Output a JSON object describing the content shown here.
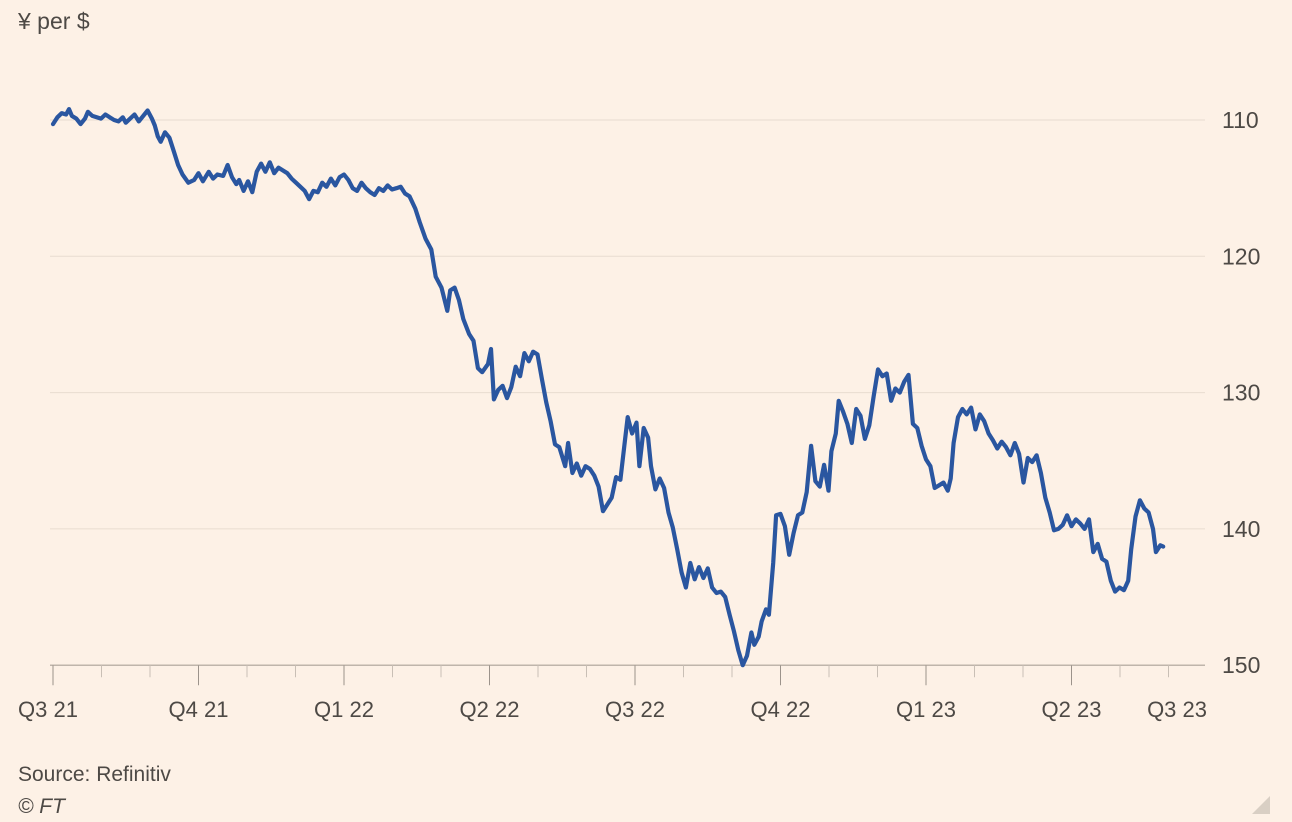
{
  "header": {
    "unit_label": "¥ per $"
  },
  "footer": {
    "source": "Source: Refinitiv",
    "copyright": "© FT"
  },
  "colors": {
    "background": "#fdf1e6",
    "line": "#2a56a0",
    "grid": "#e8dcd0",
    "text": "#4d4945"
  },
  "chart_data": {
    "type": "line",
    "title": "",
    "xlabel": "",
    "ylabel": "¥ per $",
    "y_axis_position": "right",
    "y_inverted": true,
    "ylim": [
      150,
      106
    ],
    "y_ticks": [
      110,
      120,
      130,
      140,
      150
    ],
    "x_tick_labels": [
      "Q3 21",
      "Q4 21",
      "Q1 22",
      "Q2 22",
      "Q3 22",
      "Q4 22",
      "Q1 23",
      "Q2 23",
      "Q3 23"
    ],
    "x_range_quarters": [
      0,
      8.3
    ],
    "grid": true,
    "legend": "none",
    "series": [
      {
        "values": [
          [
            0.0,
            110.3
          ],
          [
            0.03,
            109.8
          ],
          [
            0.06,
            109.5
          ],
          [
            0.09,
            109.6
          ],
          [
            0.11,
            109.2
          ],
          [
            0.13,
            109.7
          ],
          [
            0.16,
            109.9
          ],
          [
            0.19,
            110.3
          ],
          [
            0.22,
            109.9
          ],
          [
            0.24,
            109.4
          ],
          [
            0.27,
            109.7
          ],
          [
            0.3,
            109.8
          ],
          [
            0.33,
            109.9
          ],
          [
            0.36,
            109.6
          ],
          [
            0.39,
            109.8
          ],
          [
            0.42,
            110.0
          ],
          [
            0.45,
            110.1
          ],
          [
            0.48,
            109.8
          ],
          [
            0.5,
            110.2
          ],
          [
            0.53,
            109.9
          ],
          [
            0.56,
            109.6
          ],
          [
            0.59,
            110.1
          ],
          [
            0.62,
            109.7
          ],
          [
            0.65,
            109.3
          ],
          [
            0.68,
            109.9
          ],
          [
            0.7,
            110.4
          ],
          [
            0.72,
            111.2
          ],
          [
            0.74,
            111.6
          ],
          [
            0.77,
            110.9
          ],
          [
            0.8,
            111.3
          ],
          [
            0.83,
            112.3
          ],
          [
            0.86,
            113.3
          ],
          [
            0.89,
            114.0
          ],
          [
            0.93,
            114.6
          ],
          [
            0.97,
            114.4
          ],
          [
            1.0,
            113.9
          ],
          [
            1.03,
            114.5
          ],
          [
            1.07,
            113.8
          ],
          [
            1.1,
            114.3
          ],
          [
            1.13,
            114.0
          ],
          [
            1.17,
            114.1
          ],
          [
            1.2,
            113.3
          ],
          [
            1.23,
            114.2
          ],
          [
            1.26,
            114.7
          ],
          [
            1.28,
            114.4
          ],
          [
            1.31,
            115.2
          ],
          [
            1.34,
            114.5
          ],
          [
            1.37,
            115.3
          ],
          [
            1.4,
            113.8
          ],
          [
            1.43,
            113.2
          ],
          [
            1.46,
            113.8
          ],
          [
            1.49,
            113.1
          ],
          [
            1.52,
            113.9
          ],
          [
            1.55,
            113.5
          ],
          [
            1.58,
            113.7
          ],
          [
            1.61,
            113.9
          ],
          [
            1.64,
            114.3
          ],
          [
            1.67,
            114.6
          ],
          [
            1.7,
            114.9
          ],
          [
            1.73,
            115.2
          ],
          [
            1.76,
            115.8
          ],
          [
            1.79,
            115.2
          ],
          [
            1.82,
            115.3
          ],
          [
            1.85,
            114.6
          ],
          [
            1.88,
            114.9
          ],
          [
            1.91,
            114.3
          ],
          [
            1.94,
            114.8
          ],
          [
            1.97,
            114.2
          ],
          [
            2.0,
            114.0
          ],
          [
            2.03,
            114.4
          ],
          [
            2.06,
            115.0
          ],
          [
            2.09,
            115.2
          ],
          [
            2.12,
            114.6
          ],
          [
            2.15,
            115.0
          ],
          [
            2.18,
            115.3
          ],
          [
            2.21,
            115.5
          ],
          [
            2.24,
            115.0
          ],
          [
            2.27,
            115.2
          ],
          [
            2.3,
            114.8
          ],
          [
            2.33,
            115.1
          ],
          [
            2.36,
            115.0
          ],
          [
            2.39,
            114.9
          ],
          [
            2.42,
            115.4
          ],
          [
            2.45,
            115.6
          ],
          [
            2.49,
            116.5
          ],
          [
            2.52,
            117.5
          ],
          [
            2.56,
            118.7
          ],
          [
            2.6,
            119.5
          ],
          [
            2.63,
            121.5
          ],
          [
            2.67,
            122.3
          ],
          [
            2.71,
            124.0
          ],
          [
            2.73,
            122.5
          ],
          [
            2.76,
            122.3
          ],
          [
            2.79,
            123.2
          ],
          [
            2.82,
            124.6
          ],
          [
            2.86,
            125.7
          ],
          [
            2.89,
            126.2
          ],
          [
            2.92,
            128.2
          ],
          [
            2.95,
            128.5
          ],
          [
            2.99,
            127.9
          ],
          [
            3.01,
            126.8
          ],
          [
            3.03,
            130.5
          ],
          [
            3.06,
            129.8
          ],
          [
            3.09,
            129.5
          ],
          [
            3.12,
            130.4
          ],
          [
            3.15,
            129.6
          ],
          [
            3.18,
            128.1
          ],
          [
            3.21,
            128.8
          ],
          [
            3.24,
            127.1
          ],
          [
            3.27,
            127.7
          ],
          [
            3.3,
            127.0
          ],
          [
            3.33,
            127.2
          ],
          [
            3.36,
            129.0
          ],
          [
            3.39,
            130.7
          ],
          [
            3.42,
            132.1
          ],
          [
            3.45,
            133.8
          ],
          [
            3.48,
            134.0
          ],
          [
            3.52,
            135.4
          ],
          [
            3.54,
            133.7
          ],
          [
            3.57,
            135.9
          ],
          [
            3.6,
            135.2
          ],
          [
            3.63,
            136.1
          ],
          [
            3.66,
            135.4
          ],
          [
            3.69,
            135.6
          ],
          [
            3.72,
            136.1
          ],
          [
            3.75,
            136.9
          ],
          [
            3.78,
            138.7
          ],
          [
            3.81,
            138.2
          ],
          [
            3.84,
            137.7
          ],
          [
            3.87,
            136.2
          ],
          [
            3.9,
            136.4
          ],
          [
            3.93,
            133.6
          ],
          [
            3.95,
            131.8
          ],
          [
            3.98,
            133.0
          ],
          [
            4.01,
            132.2
          ],
          [
            4.03,
            135.4
          ],
          [
            4.06,
            132.6
          ],
          [
            4.09,
            133.3
          ],
          [
            4.11,
            135.4
          ],
          [
            4.14,
            137.1
          ],
          [
            4.17,
            136.3
          ],
          [
            4.2,
            137.0
          ],
          [
            4.23,
            138.8
          ],
          [
            4.26,
            139.9
          ],
          [
            4.29,
            141.5
          ],
          [
            4.32,
            143.2
          ],
          [
            4.35,
            144.3
          ],
          [
            4.38,
            142.5
          ],
          [
            4.41,
            143.7
          ],
          [
            4.44,
            142.8
          ],
          [
            4.47,
            143.6
          ],
          [
            4.5,
            142.9
          ],
          [
            4.53,
            144.3
          ],
          [
            4.56,
            144.7
          ],
          [
            4.59,
            144.6
          ],
          [
            4.62,
            145.0
          ],
          [
            4.65,
            146.3
          ],
          [
            4.68,
            147.5
          ],
          [
            4.71,
            148.9
          ],
          [
            4.74,
            150.0
          ],
          [
            4.77,
            149.3
          ],
          [
            4.8,
            147.6
          ],
          [
            4.82,
            148.5
          ],
          [
            4.85,
            147.9
          ],
          [
            4.87,
            146.8
          ],
          [
            4.9,
            145.9
          ],
          [
            4.92,
            146.3
          ],
          [
            4.95,
            142.5
          ],
          [
            4.97,
            139.0
          ],
          [
            5.0,
            138.9
          ],
          [
            5.03,
            139.8
          ],
          [
            5.06,
            141.9
          ],
          [
            5.09,
            140.3
          ],
          [
            5.12,
            139.0
          ],
          [
            5.15,
            138.8
          ],
          [
            5.18,
            137.3
          ],
          [
            5.21,
            133.9
          ],
          [
            5.24,
            136.5
          ],
          [
            5.27,
            136.9
          ],
          [
            5.3,
            135.3
          ],
          [
            5.33,
            137.2
          ],
          [
            5.35,
            134.3
          ],
          [
            5.38,
            133.0
          ],
          [
            5.4,
            130.6
          ],
          [
            5.43,
            131.4
          ],
          [
            5.46,
            132.3
          ],
          [
            5.49,
            133.7
          ],
          [
            5.52,
            131.2
          ],
          [
            5.55,
            131.7
          ],
          [
            5.58,
            133.4
          ],
          [
            5.61,
            132.4
          ],
          [
            5.64,
            130.3
          ],
          [
            5.67,
            128.3
          ],
          [
            5.7,
            128.8
          ],
          [
            5.73,
            128.6
          ],
          [
            5.76,
            130.6
          ],
          [
            5.79,
            129.7
          ],
          [
            5.82,
            130.0
          ],
          [
            5.85,
            129.2
          ],
          [
            5.88,
            128.7
          ],
          [
            5.91,
            132.3
          ],
          [
            5.94,
            132.6
          ],
          [
            5.97,
            133.9
          ],
          [
            6.0,
            134.9
          ],
          [
            6.03,
            135.4
          ],
          [
            6.06,
            137.0
          ],
          [
            6.09,
            136.8
          ],
          [
            6.12,
            136.6
          ],
          [
            6.15,
            137.2
          ],
          [
            6.17,
            136.3
          ],
          [
            6.19,
            133.7
          ],
          [
            6.22,
            131.8
          ],
          [
            6.25,
            131.2
          ],
          [
            6.28,
            131.6
          ],
          [
            6.31,
            131.1
          ],
          [
            6.34,
            132.7
          ],
          [
            6.37,
            131.6
          ],
          [
            6.4,
            132.1
          ],
          [
            6.43,
            133.0
          ],
          [
            6.46,
            133.5
          ],
          [
            6.49,
            134.1
          ],
          [
            6.52,
            133.6
          ],
          [
            6.55,
            134.0
          ],
          [
            6.58,
            134.6
          ],
          [
            6.61,
            133.7
          ],
          [
            6.64,
            134.5
          ],
          [
            6.67,
            136.6
          ],
          [
            6.7,
            134.8
          ],
          [
            6.73,
            135.1
          ],
          [
            6.76,
            134.6
          ],
          [
            6.79,
            135.9
          ],
          [
            6.82,
            137.7
          ],
          [
            6.85,
            138.8
          ],
          [
            6.88,
            140.1
          ],
          [
            6.91,
            140.0
          ],
          [
            6.94,
            139.7
          ],
          [
            6.97,
            139.0
          ],
          [
            7.0,
            139.8
          ],
          [
            7.03,
            139.3
          ],
          [
            7.06,
            139.6
          ],
          [
            7.09,
            140.0
          ],
          [
            7.12,
            139.3
          ],
          [
            7.15,
            141.7
          ],
          [
            7.18,
            141.1
          ],
          [
            7.21,
            142.2
          ],
          [
            7.24,
            142.4
          ],
          [
            7.27,
            143.8
          ],
          [
            7.3,
            144.6
          ],
          [
            7.33,
            144.3
          ],
          [
            7.36,
            144.5
          ],
          [
            7.39,
            143.8
          ],
          [
            7.41,
            141.5
          ],
          [
            7.44,
            139.1
          ],
          [
            7.47,
            137.9
          ],
          [
            7.5,
            138.5
          ],
          [
            7.53,
            138.8
          ],
          [
            7.56,
            140.0
          ],
          [
            7.58,
            141.7
          ],
          [
            7.61,
            141.2
          ],
          [
            7.63,
            141.3
          ]
        ]
      }
    ]
  }
}
